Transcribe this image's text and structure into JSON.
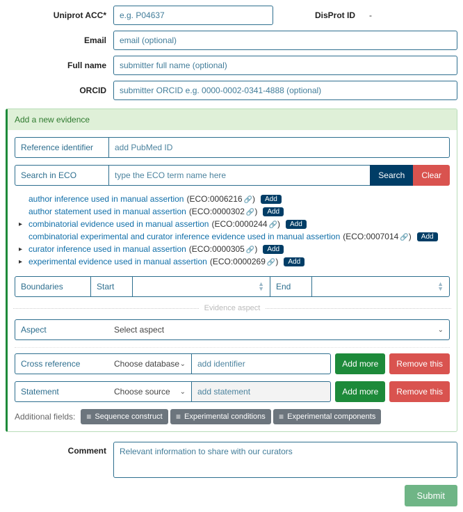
{
  "colors": {
    "border": "#2d6e8e",
    "green": "#1d8a3a",
    "red": "#d9534f",
    "darkblue": "#003d66",
    "headbg": "#dff0d8"
  },
  "top": {
    "uniprot_label": "Uniprot ACC*",
    "uniprot_placeholder": "e.g. P04637",
    "disprot_label": "DisProt ID",
    "disprot_value": "-",
    "email_label": "Email",
    "email_placeholder": "email (optional)",
    "fullname_label": "Full name",
    "fullname_placeholder": "submitter full name (optional)",
    "orcid_label": "ORCID",
    "orcid_placeholder": "submitter ORCID e.g. 0000-0002-0341-4888 (optional)"
  },
  "evidence": {
    "heading": "Add a new evidence",
    "ref_label": "Reference identifier",
    "ref_placeholder": "add PubMed ID",
    "search_label": "Search in ECO",
    "search_placeholder": "type the ECO term name here",
    "search_btn": "Search",
    "clear_btn": "Clear",
    "add_badge": "Add",
    "eco": [
      {
        "expand": false,
        "text": "author inference used in manual assertion",
        "code": "ECO:0006216"
      },
      {
        "expand": false,
        "text": "author statement used in manual assertion",
        "code": "ECO:0000302"
      },
      {
        "expand": true,
        "text": "combinatorial evidence used in manual assertion",
        "code": "ECO:0000244"
      },
      {
        "expand": false,
        "text": "combinatorial experimental and curator inference evidence used in manual assertion",
        "code": "ECO:0007014"
      },
      {
        "expand": true,
        "text": "curator inference used in manual assertion",
        "code": "ECO:0000305"
      },
      {
        "expand": true,
        "text": "experimental evidence used in manual assertion",
        "code": "ECO:0000269"
      }
    ],
    "bounds_label": "Boundaries",
    "start_label": "Start",
    "end_label": "End",
    "aspect_divider": "Evidence aspect",
    "aspect_label": "Aspect",
    "aspect_value": "Select aspect",
    "xref_label": "Cross reference",
    "xref_db": "Choose database",
    "xref_placeholder": "add identifier",
    "stmt_label": "Statement",
    "stmt_src": "Choose source",
    "stmt_placeholder": "add statement",
    "add_more": "Add more",
    "remove_this": "Remove this",
    "additional_label": "Additional fields:",
    "chips": [
      "Sequence construct",
      "Experimental conditions",
      "Experimental components"
    ]
  },
  "comment": {
    "label": "Comment",
    "placeholder": "Relevant information to share with our curators"
  },
  "submit": "Submit"
}
